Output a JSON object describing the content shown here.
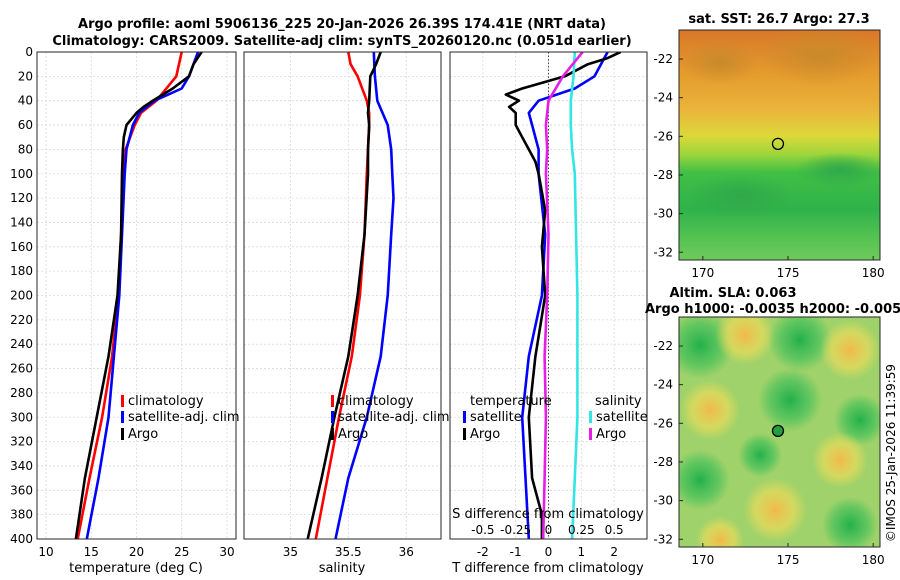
{
  "title_line1": "Argo profile: aoml 5906136_225 20-Jan-2026 26.39S 174.41E (NRT data)",
  "title_line2": "Climatology: CARS2009. Satellite-adj clim: synTS_20260120.nc (0.051d earlier)",
  "sst_title": "sat. SST: 26.7 Argo: 27.3",
  "sla_title1": "Altim. SLA: 0.063",
  "sla_title2": "Argo h1000: -0.0035 h2000: -0.005",
  "credit": "©IMOS 25-Jan-2026 11:39:59",
  "colors": {
    "climatology": "#ff0000",
    "satellite": "#0000ff",
    "argo": "#000000",
    "sal_satellite": "#33e5e5",
    "sal_argo": "#e51ee5"
  },
  "legend": {
    "climatology": "climatology",
    "satellite_adj": "satellite-adj. clim",
    "argo": "Argo",
    "temperature": "temperature",
    "salinity": "salinity",
    "satellite": "satellite"
  },
  "chart_data": [
    {
      "type": "line",
      "panel": "temperature",
      "xlabel": "temperature (deg C)",
      "ylabel": "",
      "xlim": [
        9,
        31
      ],
      "ylim": [
        400,
        0
      ],
      "xticks": [
        10,
        15,
        20,
        25,
        30
      ],
      "yticks": [
        0,
        20,
        40,
        60,
        80,
        100,
        120,
        140,
        160,
        180,
        200,
        220,
        240,
        260,
        280,
        300,
        320,
        340,
        360,
        380,
        400
      ],
      "grid": true,
      "legend_position": "lower-right",
      "series": [
        {
          "name": "climatology",
          "color": "#ff0000",
          "depth": [
            0,
            20,
            40,
            50,
            60,
            80,
            100,
            150,
            200,
            250,
            300,
            350,
            400
          ],
          "values": [
            25.0,
            24.4,
            22.2,
            20.5,
            19.8,
            18.8,
            18.6,
            18.3,
            18.0,
            17.3,
            16.2,
            14.8,
            13.5
          ]
        },
        {
          "name": "satellite-adj. clim",
          "color": "#0000ff",
          "depth": [
            0,
            20,
            30,
            40,
            50,
            60,
            80,
            100,
            150,
            200,
            250,
            300,
            350,
            400
          ],
          "values": [
            26.8,
            25.8,
            25.0,
            22.0,
            20.3,
            19.6,
            18.9,
            18.7,
            18.4,
            18.1,
            17.5,
            16.9,
            15.8,
            14.5
          ]
        },
        {
          "name": "Argo",
          "color": "#000000",
          "depth": [
            0,
            10,
            20,
            30,
            40,
            45,
            50,
            60,
            70,
            80,
            100,
            150,
            200,
            250,
            300,
            350,
            400
          ],
          "values": [
            27.2,
            26.3,
            25.8,
            24.0,
            21.8,
            20.8,
            20.0,
            18.9,
            18.6,
            18.5,
            18.4,
            18.3,
            17.9,
            16.9,
            15.6,
            14.3,
            13.3
          ]
        }
      ]
    },
    {
      "type": "line",
      "panel": "salinity",
      "xlabel": "salinity",
      "ylabel": "",
      "xlim": [
        34.6,
        36.3
      ],
      "ylim": [
        400,
        0
      ],
      "xticks": [
        35,
        35.5,
        36
      ],
      "xtick_labels": [
        "35",
        "35.5",
        "36"
      ],
      "grid": true,
      "legend_position": "lower-right",
      "series": [
        {
          "name": "climatology",
          "color": "#ff0000",
          "depth": [
            0,
            10,
            20,
            40,
            50,
            60,
            80,
            100,
            150,
            200,
            250,
            300,
            350,
            400
          ],
          "values": [
            35.5,
            35.52,
            35.58,
            35.66,
            35.68,
            35.68,
            35.67,
            35.66,
            35.64,
            35.6,
            35.53,
            35.42,
            35.32,
            35.22
          ]
        },
        {
          "name": "satellite-adj. clim",
          "color": "#0000ff",
          "depth": [
            0,
            20,
            40,
            60,
            80,
            100,
            120,
            150,
            200,
            250,
            300,
            350,
            400
          ],
          "values": [
            35.72,
            35.73,
            35.75,
            35.84,
            35.87,
            35.88,
            35.89,
            35.87,
            35.84,
            35.78,
            35.66,
            35.5,
            35.39
          ]
        },
        {
          "name": "Argo",
          "color": "#000000",
          "depth": [
            0,
            10,
            20,
            40,
            50,
            60,
            80,
            100,
            150,
            200,
            250,
            300,
            350,
            400
          ],
          "values": [
            35.78,
            35.74,
            35.69,
            35.68,
            35.67,
            35.68,
            35.67,
            35.67,
            35.64,
            35.58,
            35.5,
            35.38,
            35.27,
            35.15
          ]
        }
      ]
    },
    {
      "type": "line",
      "panel": "difference",
      "xlabel": "T difference from climatology",
      "xlabel_secondary": "S difference from climatology",
      "ylabel": "",
      "xlim": [
        -3,
        3
      ],
      "ylim": [
        400,
        0
      ],
      "xticks": [
        -2,
        -1,
        0,
        1,
        2
      ],
      "xticks_secondary": [
        -0.5,
        -0.25,
        0,
        0.25,
        0.5
      ],
      "xtick_labels_secondary": [
        "-0.5",
        "-0.25",
        "0",
        "0.25",
        "0.5"
      ],
      "grid": true,
      "reference_line": 0,
      "legend_position": "lower-center",
      "series": [
        {
          "name": "temperature satellite",
          "color": "#0000ff",
          "depth": [
            0,
            20,
            30,
            40,
            50,
            60,
            80,
            100,
            150,
            200,
            250,
            300,
            350,
            400
          ],
          "values": [
            1.8,
            1.4,
            0.8,
            -0.3,
            -0.6,
            -0.5,
            -0.3,
            -0.3,
            -0.1,
            -0.2,
            -0.6,
            -0.8,
            -0.7,
            -0.6
          ]
        },
        {
          "name": "temperature Argo",
          "color": "#000000",
          "depth": [
            0,
            5,
            10,
            20,
            30,
            35,
            40,
            45,
            50,
            60,
            70,
            80,
            90,
            100,
            130,
            160,
            200,
            250,
            300,
            350,
            380,
            400
          ],
          "values": [
            2.2,
            1.8,
            1.2,
            0.5,
            -0.8,
            -1.3,
            -0.9,
            -1.2,
            -1.0,
            -1.0,
            -0.8,
            -0.6,
            -0.4,
            -0.3,
            -0.1,
            -0.2,
            -0.1,
            -0.4,
            -0.6,
            -0.5,
            -0.2,
            -0.2
          ]
        },
        {
          "name": "salinity satellite",
          "color": "#33e5e5",
          "depth": [
            0,
            20,
            40,
            60,
            80,
            100,
            150,
            200,
            250,
            300,
            350,
            400
          ],
          "values": [
            0.2,
            0.19,
            0.17,
            0.17,
            0.18,
            0.2,
            0.21,
            0.22,
            0.22,
            0.22,
            0.2,
            0.18
          ]
        },
        {
          "name": "salinity Argo",
          "color": "#e51ee5",
          "depth": [
            0,
            20,
            40,
            60,
            80,
            100,
            150,
            200,
            250,
            300,
            350,
            400
          ],
          "values": [
            0.26,
            0.11,
            0.0,
            -0.02,
            -0.01,
            -0.02,
            0.0,
            -0.01,
            -0.03,
            -0.02,
            -0.03,
            -0.04
          ]
        }
      ]
    },
    {
      "type": "heatmap",
      "panel": "sea surface temperature map",
      "title": "sat. SST: 26.7 Argo: 27.3",
      "xlim": [
        168.6,
        180.4
      ],
      "ylim": [
        -32.4,
        -20.5
      ],
      "xticks": [
        170,
        175,
        180
      ],
      "yticks": [
        -22,
        -24,
        -26,
        -28,
        -30,
        -32
      ],
      "profile_location": {
        "lon": 174.41,
        "lat": -26.39
      }
    },
    {
      "type": "heatmap",
      "panel": "sea level anomaly map",
      "title": "Altim. SLA: 0.063",
      "xlim": [
        168.6,
        180.4
      ],
      "ylim": [
        -32.4,
        -20.5
      ],
      "xticks": [
        170,
        175,
        180
      ],
      "yticks": [
        -22,
        -24,
        -26,
        -28,
        -30,
        -32
      ],
      "profile_location": {
        "lon": 174.41,
        "lat": -26.39
      }
    }
  ]
}
